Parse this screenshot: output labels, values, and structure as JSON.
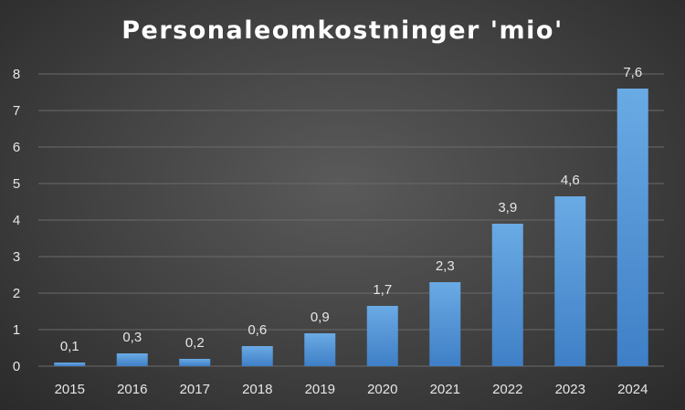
{
  "chart_data": {
    "type": "bar",
    "title": "Personaleomkostninger 'mio'",
    "categories": [
      "2015",
      "2016",
      "2017",
      "2018",
      "2019",
      "2020",
      "2021",
      "2022",
      "2023",
      "2024"
    ],
    "values": [
      0.1,
      0.35,
      0.2,
      0.55,
      0.9,
      1.65,
      2.3,
      3.9,
      4.65,
      7.6
    ],
    "data_labels": [
      "0,1",
      "0,3",
      "0,2",
      "0,6",
      "0,9",
      "1,7",
      "2,3",
      "3,9",
      "4,6",
      "7,6"
    ],
    "ylim": [
      0,
      8
    ],
    "yticks": [
      "0",
      "1",
      "2",
      "3",
      "4",
      "5",
      "6",
      "7",
      "8"
    ],
    "xlabel": "",
    "ylabel": "",
    "grid": true,
    "legend": "none",
    "colors": {
      "bar_top": "#6aaae4",
      "bar_bottom": "#3f7fc6",
      "grid": "#6a6a6a",
      "text": "#e6e6e6"
    }
  }
}
